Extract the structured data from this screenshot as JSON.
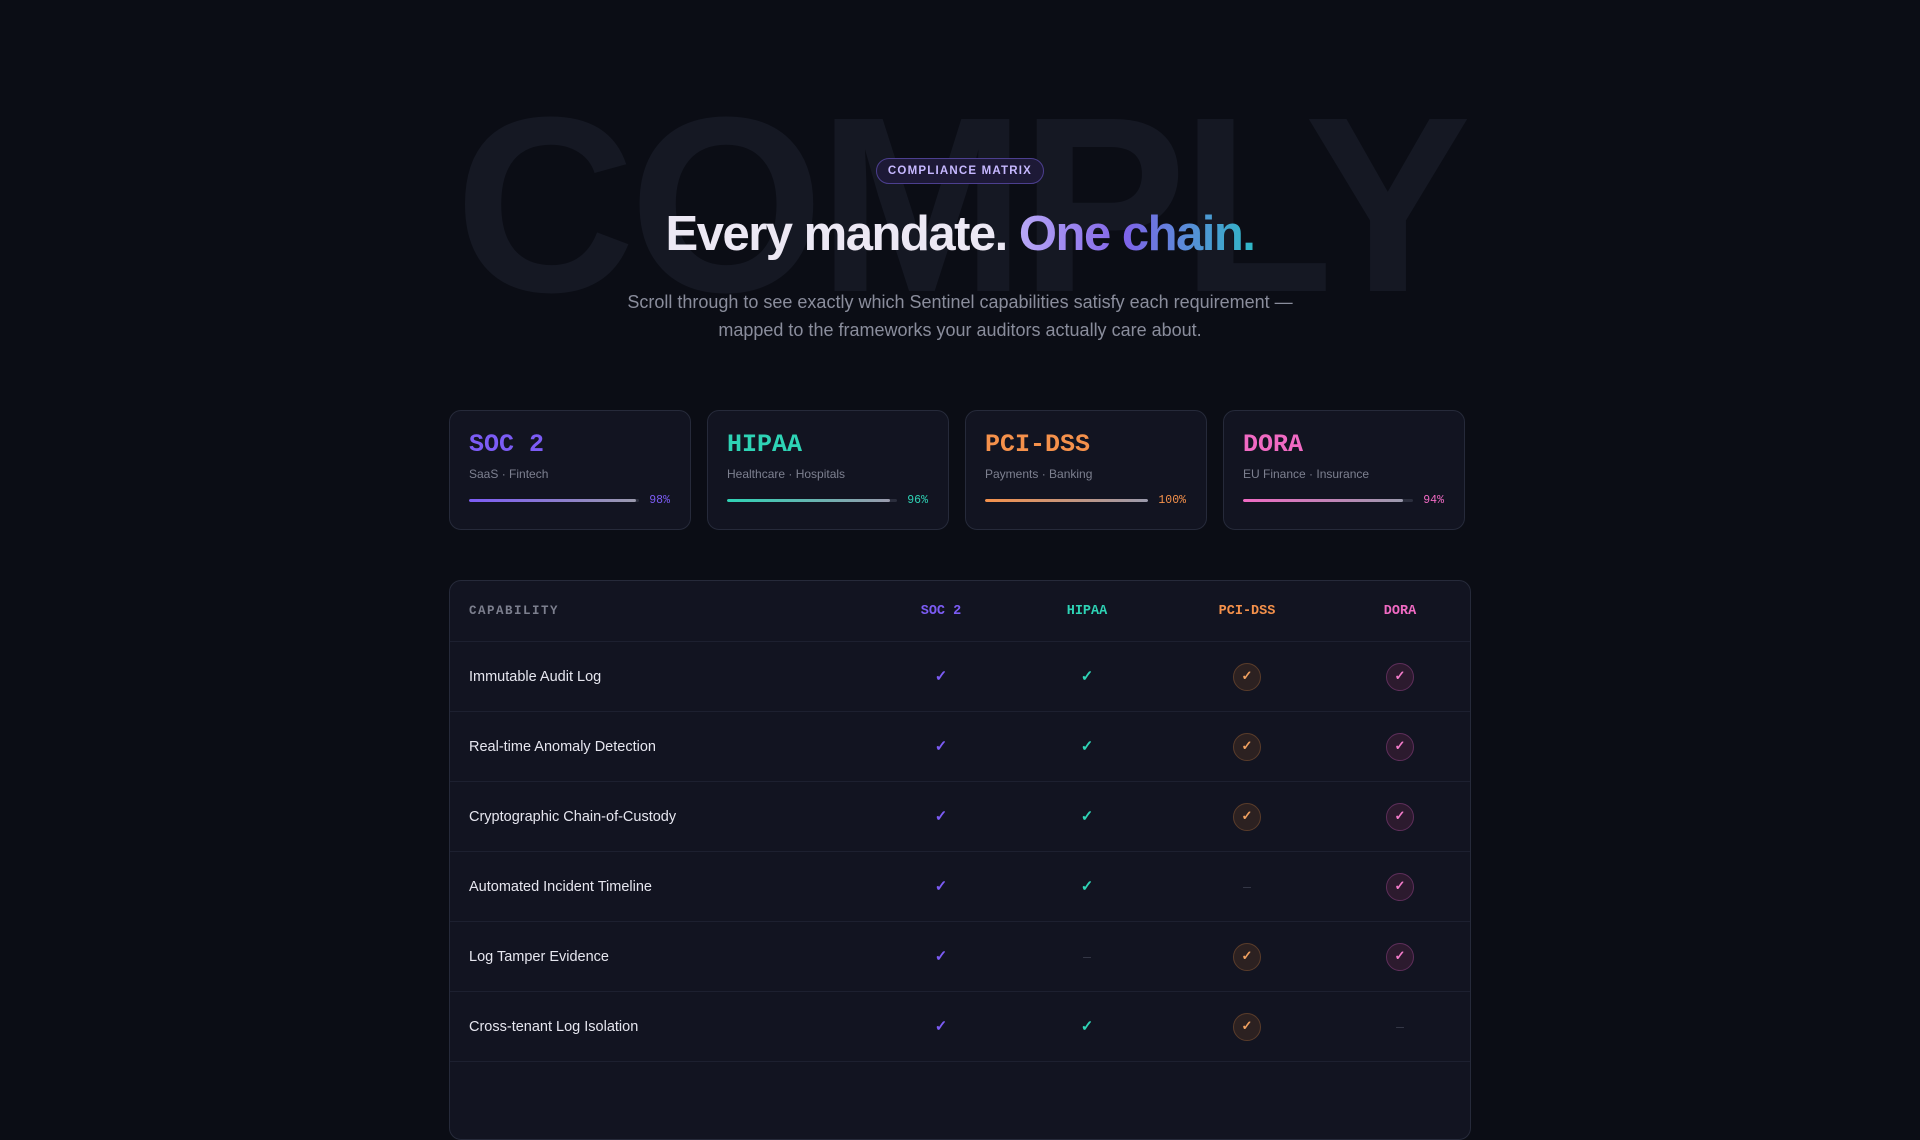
{
  "watermark": "COMPLY",
  "eyebrow": "COMPLIANCE MATRIX",
  "headline": {
    "lead": "Every mandate.",
    "accent": "One chain."
  },
  "subtitle": "Scroll through to see exactly which Sentinel capabilities satisfy each requirement — mapped to the frameworks your auditors actually care about.",
  "colors": {
    "soc2": "#7c5cf5",
    "hipaa": "#2ed3b5",
    "pcidss": "#f5914b",
    "dora": "#f06ac3"
  },
  "frameworks": [
    {
      "name": "SOC 2",
      "segment": "SaaS · Fintech",
      "coverage": 0.98,
      "pct_label": "98%"
    },
    {
      "name": "HIPAA",
      "segment": "Healthcare · Hospitals",
      "coverage": 0.96,
      "pct_label": "96%"
    },
    {
      "name": "PCI-DSS",
      "segment": "Payments · Banking",
      "coverage": 1.0,
      "pct_label": "100%"
    },
    {
      "name": "DORA",
      "segment": "EU Finance · Insurance",
      "coverage": 0.94,
      "pct_label": "94%"
    }
  ],
  "matrix": {
    "header": {
      "capability": "CAPABILITY",
      "cols": [
        "SOC 2",
        "HIPAA",
        "PCI-DSS",
        "DORA"
      ]
    },
    "check_symbol": "✓",
    "dash_symbol": "—",
    "rows": [
      {
        "capability": "Immutable Audit Log",
        "marks": [
          true,
          true,
          true,
          true
        ]
      },
      {
        "capability": "Real-time Anomaly Detection",
        "marks": [
          true,
          true,
          true,
          true
        ]
      },
      {
        "capability": "Cryptographic Chain-of-Custody",
        "marks": [
          true,
          true,
          true,
          true
        ]
      },
      {
        "capability": "Automated Incident Timeline",
        "marks": [
          true,
          true,
          false,
          true
        ]
      },
      {
        "capability": "Log Tamper Evidence",
        "marks": [
          true,
          false,
          true,
          true
        ]
      },
      {
        "capability": "Cross-tenant Log Isolation",
        "marks": [
          true,
          true,
          true,
          false
        ]
      }
    ]
  }
}
